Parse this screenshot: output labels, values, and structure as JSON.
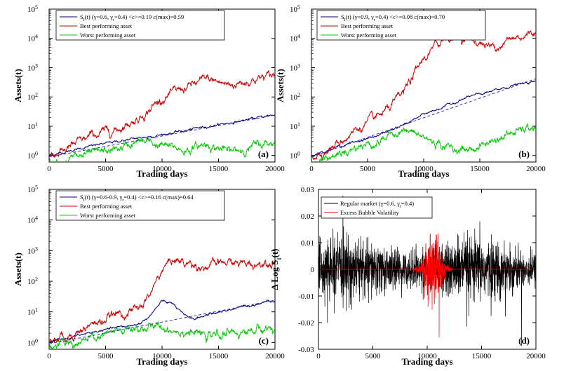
{
  "figure": {
    "panels": [
      {
        "id": "a",
        "tag": "(a)",
        "xlabel": "Trading days",
        "ylabel": "Assets(t)",
        "legend": {
          "sindex_main": "S",
          "sindex_sub": "I",
          "sindex_rest": "(t)  (γ=0.6, γ",
          "sindex_sub2": "r",
          "sindex_tail": "=0.4)  <c>=0.19  c(max)=0.59",
          "best": "Best performing asset",
          "worst": "Worst performing asset"
        },
        "y_ticks": [
          "10",
          "10",
          "10",
          "10",
          "10",
          "10"
        ],
        "y_exps": [
          "0",
          "1",
          "2",
          "3",
          "4",
          "5"
        ],
        "x_ticks": [
          "0",
          "5000",
          "10000",
          "15000",
          "20000"
        ]
      },
      {
        "id": "b",
        "tag": "(b)",
        "xlabel": "Trading days",
        "ylabel": "Assets(t)",
        "legend": {
          "sindex_main": "S",
          "sindex_sub": "I",
          "sindex_rest": "(t)  (γ=0.9, γ",
          "sindex_sub2": "r",
          "sindex_tail": "=0.4)  <c>=0.08  c(max)=0.70",
          "best": "Best performing asset",
          "worst": "Worst performing asset"
        },
        "y_ticks": [
          "10",
          "10",
          "10",
          "10",
          "10",
          "10"
        ],
        "y_exps": [
          "0",
          "1",
          "2",
          "3",
          "4",
          "5"
        ],
        "x_ticks": [
          "0",
          "5000",
          "10000",
          "15000",
          "20000"
        ]
      },
      {
        "id": "c",
        "tag": "(c)",
        "xlabel": "Trading days",
        "ylabel": "Assets(t)",
        "legend": {
          "sindex_main": "S",
          "sindex_sub": "I",
          "sindex_rest": "(t)  (γ=0.6-0.9, γ",
          "sindex_sub2": "r",
          "sindex_tail": "=0.4)  <c>=0.16  c(max)=0.64",
          "best": "Best performing asset",
          "worst": "Worst performing asset"
        },
        "y_ticks": [
          "10",
          "10",
          "10",
          "10",
          "10",
          "10"
        ],
        "y_exps": [
          "0",
          "1",
          "2",
          "3",
          "4",
          "5"
        ],
        "x_ticks": [
          "0",
          "5000",
          "10000",
          "15000",
          "20000"
        ]
      },
      {
        "id": "d",
        "tag": "(d)",
        "xlabel": "Trading days",
        "ylabel": "Δ Log S",
        "ylabel_sub": "I",
        "ylabel_tail": "(t)",
        "legend": {
          "regular_main": "Regular market  (γ=0.6, γ",
          "regular_sub": "r",
          "regular_tail": "=0.4)",
          "bubble": "Excess Bubble Volatility"
        },
        "y_ticks": [
          "-0.03",
          "-0.02",
          "-0.01",
          "0",
          "0.01",
          "0.02",
          "0.03"
        ],
        "x_ticks": [
          "0",
          "5000",
          "10000",
          "15000",
          "20000"
        ]
      }
    ]
  },
  "chart_data": [
    {
      "panel": "a",
      "type": "line",
      "yscale": "log",
      "xlim": [
        0,
        20000
      ],
      "ylim": [
        0.6,
        100000
      ],
      "series": [
        {
          "name": "S_I(t) index",
          "color": "#000080",
          "x": [
            0,
            2000,
            4000,
            6000,
            8000,
            10000,
            12000,
            14000,
            16000,
            18000,
            20000
          ],
          "y": [
            1,
            1.5,
            2.2,
            3.0,
            4.0,
            5.2,
            7.0,
            10,
            13,
            18,
            25
          ]
        },
        {
          "name": "Best performing asset",
          "color": "#cc0000",
          "x": [
            0,
            2000,
            4000,
            6000,
            8000,
            10000,
            12000,
            14000,
            16000,
            18000,
            20000
          ],
          "y": [
            1,
            2,
            5,
            8,
            20,
            90,
            200,
            400,
            250,
            400,
            550
          ]
        },
        {
          "name": "Worst performing asset",
          "color": "#00cc00",
          "x": [
            0,
            2000,
            4000,
            6000,
            8000,
            10000,
            12000,
            14000,
            16000,
            18000,
            20000
          ],
          "y": [
            0.7,
            0.8,
            1.1,
            1.6,
            3,
            2.2,
            1.5,
            2.5,
            1.3,
            2,
            3
          ]
        },
        {
          "name": "Exponential fit",
          "color": "#3333aa",
          "dashed": true,
          "x": [
            0,
            20000
          ],
          "y": [
            0.9,
            24
          ]
        }
      ]
    },
    {
      "panel": "b",
      "type": "line",
      "yscale": "log",
      "xlim": [
        0,
        20000
      ],
      "ylim": [
        0.6,
        100000
      ],
      "series": [
        {
          "name": "S_I(t) index",
          "color": "#000080",
          "x": [
            0,
            2000,
            4000,
            6000,
            8000,
            10000,
            12000,
            14000,
            16000,
            18000,
            20000
          ],
          "y": [
            1,
            1.8,
            3,
            5,
            10,
            25,
            50,
            100,
            150,
            250,
            330
          ]
        },
        {
          "name": "Best performing asset",
          "color": "#cc0000",
          "x": [
            0,
            2000,
            4000,
            6000,
            8000,
            10000,
            12000,
            14000,
            16000,
            18000,
            20000
          ],
          "y": [
            1,
            2,
            8,
            20,
            100,
            2000,
            12000,
            10000,
            5000,
            10000,
            17000
          ]
        },
        {
          "name": "Worst performing asset",
          "color": "#00cc00",
          "x": [
            0,
            2000,
            4000,
            6000,
            8000,
            10000,
            12000,
            14000,
            16000,
            18000,
            20000
          ],
          "y": [
            0.6,
            1,
            2,
            3,
            8,
            4,
            2,
            1.5,
            3,
            6,
            9
          ]
        },
        {
          "name": "Exponential fit",
          "color": "#3333aa",
          "dashed": true,
          "x": [
            0,
            20000
          ],
          "y": [
            0.9,
            420
          ]
        }
      ]
    },
    {
      "panel": "c",
      "type": "line",
      "yscale": "log",
      "xlim": [
        0,
        20000
      ],
      "ylim": [
        0.6,
        100000
      ],
      "series": [
        {
          "name": "S_I(t) index",
          "color": "#000080",
          "x": [
            0,
            2000,
            4000,
            6000,
            8000,
            9000,
            10000,
            11000,
            12000,
            13000,
            14000,
            16000,
            18000,
            20000
          ],
          "y": [
            1,
            1.5,
            2.2,
            3,
            4,
            8,
            22,
            18,
            7,
            6,
            8,
            12,
            17,
            25
          ]
        },
        {
          "name": "Best performing asset",
          "color": "#cc0000",
          "x": [
            0,
            2000,
            4000,
            6000,
            8000,
            9000,
            10000,
            11000,
            12000,
            14000,
            16000,
            18000,
            20000
          ],
          "y": [
            1,
            2,
            4,
            8,
            12,
            40,
            250,
            550,
            400,
            300,
            400,
            350,
            550
          ]
        },
        {
          "name": "Worst performing asset",
          "color": "#00cc00",
          "x": [
            0,
            2000,
            4000,
            6000,
            8000,
            10000,
            12000,
            14000,
            16000,
            18000,
            20000
          ],
          "y": [
            0.8,
            0.9,
            1.3,
            2,
            3,
            3,
            2.5,
            1.5,
            2,
            2.5,
            3
          ]
        },
        {
          "name": "Exponential fit",
          "color": "#3333aa",
          "dashed": true,
          "x": [
            0,
            20000
          ],
          "y": [
            0.9,
            24
          ]
        }
      ]
    },
    {
      "panel": "d",
      "type": "line",
      "yscale": "linear",
      "xlim": [
        0,
        20000
      ],
      "ylim": [
        -0.03,
        0.03
      ],
      "series": [
        {
          "name": "Regular market",
          "color": "#000000",
          "noise_sigma": 0.0045,
          "x": [
            0,
            20000
          ]
        },
        {
          "name": "Excess Bubble Volatility",
          "color": "#ff0000",
          "burst_center": 10500,
          "burst_width": 1400,
          "burst_peak_sigma": 0.008
        }
      ]
    }
  ]
}
